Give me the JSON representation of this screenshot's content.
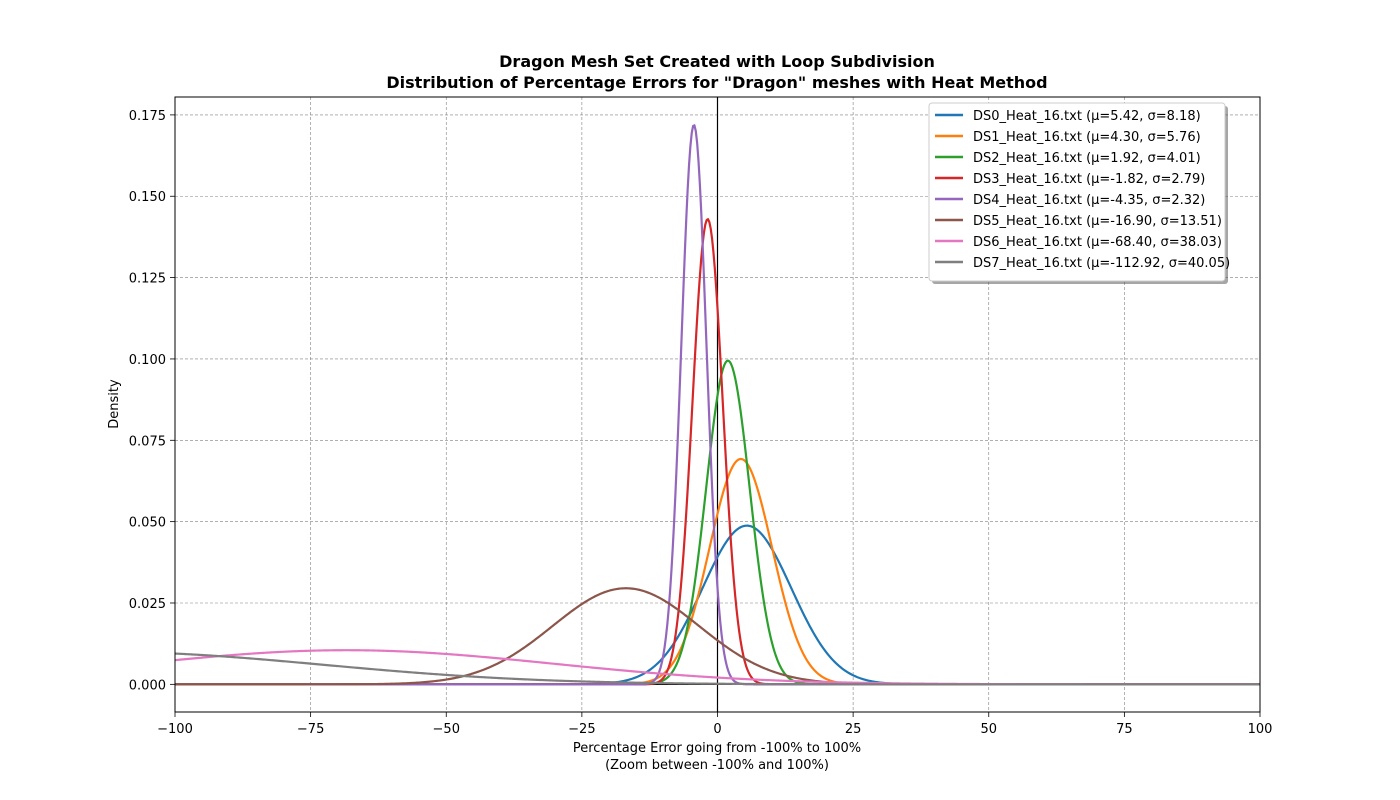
{
  "chart_data": {
    "type": "line",
    "title": "Dragon Mesh Set Created with Loop Subdivision",
    "subtitle": "Distribution of Percentage Errors for \"Dragon\" meshes with Heat Method",
    "xlabel": "Percentage Error going from -100% to 100%",
    "xlabel_note": "(Zoom between -100% and 100%)",
    "ylabel": "Density",
    "xlim": [
      -100,
      100
    ],
    "ylim": [
      -0.0085,
      0.1805
    ],
    "xticks": [
      -100,
      -75,
      -50,
      -25,
      0,
      25,
      50,
      75,
      100
    ],
    "xtick_labels": [
      "−100",
      "−75",
      "−50",
      "−25",
      "0",
      "25",
      "50",
      "75",
      "100"
    ],
    "yticks": [
      0.0,
      0.025,
      0.05,
      0.075,
      0.1,
      0.125,
      0.15,
      0.175
    ],
    "ytick_labels": [
      "0.000",
      "0.025",
      "0.050",
      "0.075",
      "0.100",
      "0.125",
      "0.150",
      "0.175"
    ],
    "grid": true,
    "reference_lines": {
      "vertical_x": 0,
      "horizontal_y": 0
    },
    "legend_position": "top-right",
    "series": [
      {
        "name": "DS0_Heat_16.txt (μ=5.42, σ=8.18)",
        "mu": 5.42,
        "sigma": 8.18,
        "color": "#1f77b4"
      },
      {
        "name": "DS1_Heat_16.txt (μ=4.30, σ=5.76)",
        "mu": 4.3,
        "sigma": 5.76,
        "color": "#ff7f0e"
      },
      {
        "name": "DS2_Heat_16.txt (μ=1.92, σ=4.01)",
        "mu": 1.92,
        "sigma": 4.01,
        "color": "#2ca02c"
      },
      {
        "name": "DS3_Heat_16.txt (μ=-1.82, σ=2.79)",
        "mu": -1.82,
        "sigma": 2.79,
        "color": "#d62728"
      },
      {
        "name": "DS4_Heat_16.txt (μ=-4.35, σ=2.32)",
        "mu": -4.35,
        "sigma": 2.32,
        "color": "#9467bd"
      },
      {
        "name": "DS5_Heat_16.txt (μ=-16.90, σ=13.51)",
        "mu": -16.9,
        "sigma": 13.51,
        "color": "#8c564b"
      },
      {
        "name": "DS6_Heat_16.txt (μ=-68.40, σ=38.03)",
        "mu": -68.4,
        "sigma": 38.03,
        "color": "#e377c2"
      },
      {
        "name": "DS7_Heat_16.txt (μ=-112.92, σ=40.05)",
        "mu": -112.92,
        "sigma": 40.05,
        "color": "#7f7f7f"
      }
    ]
  }
}
